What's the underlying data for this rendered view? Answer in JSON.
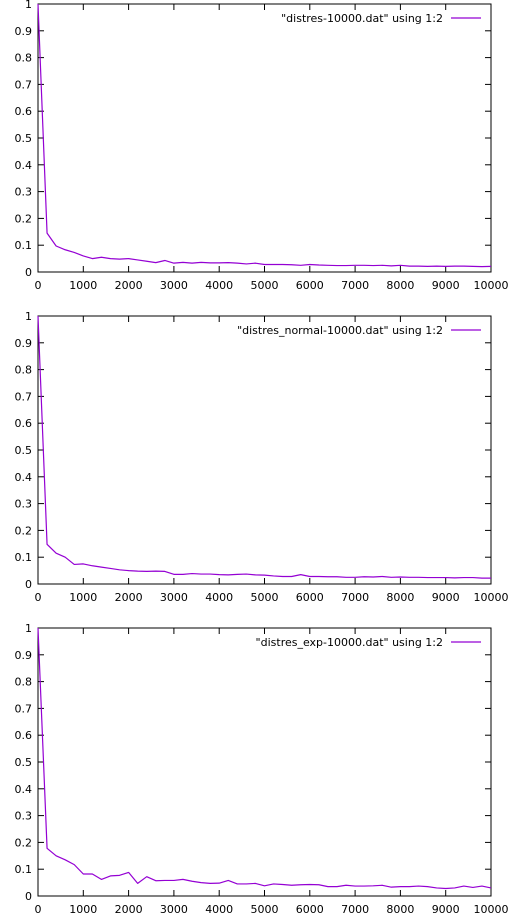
{
  "chart_data": [
    {
      "type": "line",
      "xlim": [
        0,
        10000
      ],
      "ylim": [
        0,
        1
      ],
      "xticks": [
        "0",
        "1000",
        "2000",
        "3000",
        "4000",
        "5000",
        "6000",
        "7000",
        "8000",
        "9000",
        "10000"
      ],
      "yticks": [
        "0",
        "0.1",
        "0.2",
        "0.3",
        "0.4",
        "0.5",
        "0.6",
        "0.7",
        "0.8",
        "0.9",
        "1"
      ],
      "grid": false,
      "legend_position": "top-right",
      "series": [
        {
          "name": "\"distres-10000.dat\" using 1:2",
          "color": "#9400d3",
          "x": [
            0,
            200,
            400,
            600,
            800,
            1000,
            1200,
            1400,
            1600,
            1800,
            2000,
            2200,
            2400,
            2600,
            2800,
            3000,
            3200,
            3400,
            3600,
            3800,
            4000,
            4200,
            4400,
            4600,
            4800,
            5000,
            5200,
            5400,
            5600,
            5800,
            6000,
            6200,
            6400,
            6600,
            6800,
            7000,
            7200,
            7400,
            7600,
            7800,
            8000,
            8200,
            8400,
            8600,
            8800,
            9000,
            9200,
            9400,
            9600,
            9800,
            10000
          ],
          "y": [
            1.0,
            0.145,
            0.097,
            0.083,
            0.073,
            0.06,
            0.05,
            0.055,
            0.05,
            0.048,
            0.05,
            0.045,
            0.04,
            0.035,
            0.043,
            0.033,
            0.036,
            0.033,
            0.036,
            0.034,
            0.034,
            0.035,
            0.033,
            0.03,
            0.033,
            0.028,
            0.028,
            0.028,
            0.027,
            0.025,
            0.028,
            0.026,
            0.025,
            0.024,
            0.024,
            0.025,
            0.025,
            0.024,
            0.025,
            0.023,
            0.025,
            0.022,
            0.022,
            0.021,
            0.022,
            0.021,
            0.022,
            0.022,
            0.021,
            0.02,
            0.021
          ]
        }
      ]
    },
    {
      "type": "line",
      "xlim": [
        0,
        10000
      ],
      "ylim": [
        0,
        1
      ],
      "xticks": [
        "0",
        "1000",
        "2000",
        "3000",
        "4000",
        "5000",
        "6000",
        "7000",
        "8000",
        "9000",
        "10000"
      ],
      "yticks": [
        "0",
        "0.1",
        "0.2",
        "0.3",
        "0.4",
        "0.5",
        "0.6",
        "0.7",
        "0.8",
        "0.9",
        "1"
      ],
      "grid": false,
      "legend_position": "top-right",
      "series": [
        {
          "name": "\"distres_normal-10000.dat\" using 1:2",
          "color": "#9400d3",
          "x": [
            0,
            200,
            400,
            600,
            800,
            1000,
            1200,
            1400,
            1600,
            1800,
            2000,
            2200,
            2400,
            2600,
            2800,
            3000,
            3200,
            3400,
            3600,
            3800,
            4000,
            4200,
            4400,
            4600,
            4800,
            5000,
            5200,
            5400,
            5600,
            5800,
            6000,
            6200,
            6400,
            6600,
            6800,
            7000,
            7200,
            7400,
            7600,
            7800,
            8000,
            8200,
            8400,
            8600,
            8800,
            9000,
            9200,
            9400,
            9600,
            9800,
            10000
          ],
          "y": [
            1.0,
            0.148,
            0.115,
            0.1,
            0.073,
            0.075,
            0.068,
            0.063,
            0.058,
            0.053,
            0.05,
            0.048,
            0.047,
            0.048,
            0.047,
            0.036,
            0.036,
            0.039,
            0.037,
            0.037,
            0.035,
            0.034,
            0.036,
            0.037,
            0.034,
            0.033,
            0.03,
            0.028,
            0.028,
            0.035,
            0.028,
            0.028,
            0.027,
            0.027,
            0.025,
            0.025,
            0.027,
            0.026,
            0.028,
            0.025,
            0.026,
            0.025,
            0.025,
            0.024,
            0.024,
            0.024,
            0.023,
            0.024,
            0.024,
            0.022,
            0.022
          ]
        }
      ]
    },
    {
      "type": "line",
      "xlim": [
        0,
        10000
      ],
      "ylim": [
        0,
        1
      ],
      "xticks": [
        "0",
        "1000",
        "2000",
        "3000",
        "4000",
        "5000",
        "6000",
        "7000",
        "8000",
        "9000",
        "10000"
      ],
      "yticks": [
        "0",
        "0.1",
        "0.2",
        "0.3",
        "0.4",
        "0.5",
        "0.6",
        "0.7",
        "0.8",
        "0.9",
        "1"
      ],
      "grid": false,
      "legend_position": "top-right",
      "series": [
        {
          "name": "\"distres_exp-10000.dat\" using 1:2",
          "color": "#9400d3",
          "x": [
            0,
            200,
            400,
            600,
            800,
            1000,
            1200,
            1400,
            1600,
            1800,
            2000,
            2200,
            2400,
            2600,
            2800,
            3000,
            3200,
            3400,
            3600,
            3800,
            4000,
            4200,
            4400,
            4600,
            4800,
            5000,
            5200,
            5400,
            5600,
            5800,
            6000,
            6200,
            6400,
            6600,
            6800,
            7000,
            7200,
            7400,
            7600,
            7800,
            8000,
            8200,
            8400,
            8600,
            8800,
            9000,
            9200,
            9400,
            9600,
            9800,
            10000
          ],
          "y": [
            1.0,
            0.178,
            0.15,
            0.135,
            0.117,
            0.082,
            0.082,
            0.062,
            0.075,
            0.077,
            0.088,
            0.047,
            0.072,
            0.057,
            0.058,
            0.058,
            0.062,
            0.055,
            0.05,
            0.047,
            0.048,
            0.058,
            0.045,
            0.045,
            0.047,
            0.038,
            0.045,
            0.043,
            0.04,
            0.042,
            0.043,
            0.042,
            0.035,
            0.035,
            0.04,
            0.037,
            0.037,
            0.038,
            0.04,
            0.033,
            0.035,
            0.035,
            0.037,
            0.035,
            0.03,
            0.028,
            0.03,
            0.037,
            0.032,
            0.037,
            0.03
          ]
        }
      ]
    }
  ]
}
